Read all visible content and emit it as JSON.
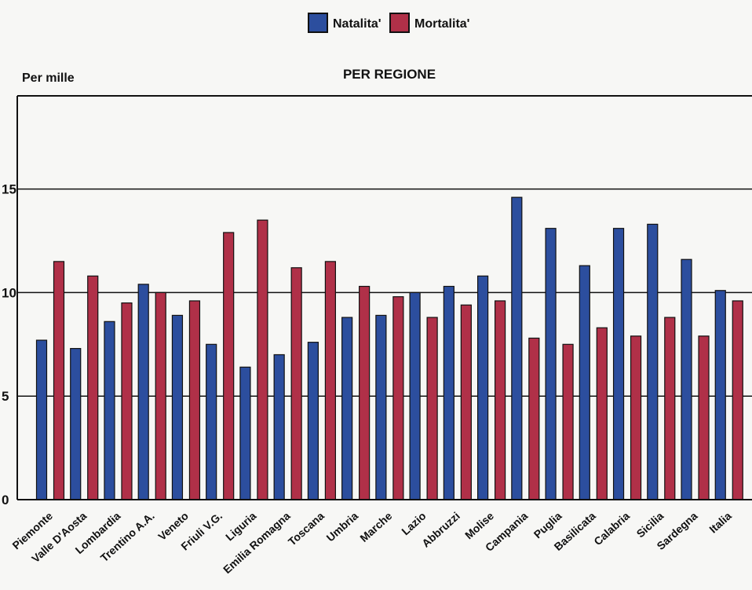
{
  "chart_data": {
    "type": "bar",
    "title": "PER REGIONE",
    "ylabel": "Per mille",
    "xlabel": "",
    "ylim": [
      0,
      19.5
    ],
    "yticks": [
      0,
      5,
      10,
      15
    ],
    "grid": true,
    "legend_position": "top-center",
    "categories": [
      "Piemonte",
      "Valle D'Aosta",
      "Lombardia",
      "Trentino A.A.",
      "Veneto",
      "Friuli V.G.",
      "Liguria",
      "Emilia Romagna",
      "Toscana",
      "Umbria",
      "Marche",
      "Lazio",
      "Abbruzzi",
      "Molise",
      "Campania",
      "Puglia",
      "Basilicata",
      "Calabria",
      "Sicilia",
      "Sardegna",
      "Italia"
    ],
    "series": [
      {
        "name": "Natalita'",
        "color": "#2c4e9e",
        "values": [
          7.7,
          7.3,
          8.6,
          10.4,
          8.9,
          7.5,
          6.4,
          7.0,
          7.6,
          8.8,
          8.9,
          10.0,
          10.3,
          10.8,
          14.6,
          13.1,
          11.3,
          13.1,
          13.3,
          11.6,
          10.1
        ]
      },
      {
        "name": "Mortalita'",
        "color": "#b03048",
        "values": [
          11.5,
          10.8,
          9.5,
          10.0,
          9.6,
          12.9,
          13.5,
          11.2,
          11.5,
          10.3,
          9.8,
          8.8,
          9.4,
          9.6,
          7.8,
          7.5,
          8.3,
          7.9,
          8.8,
          7.9,
          9.6
        ]
      }
    ]
  }
}
